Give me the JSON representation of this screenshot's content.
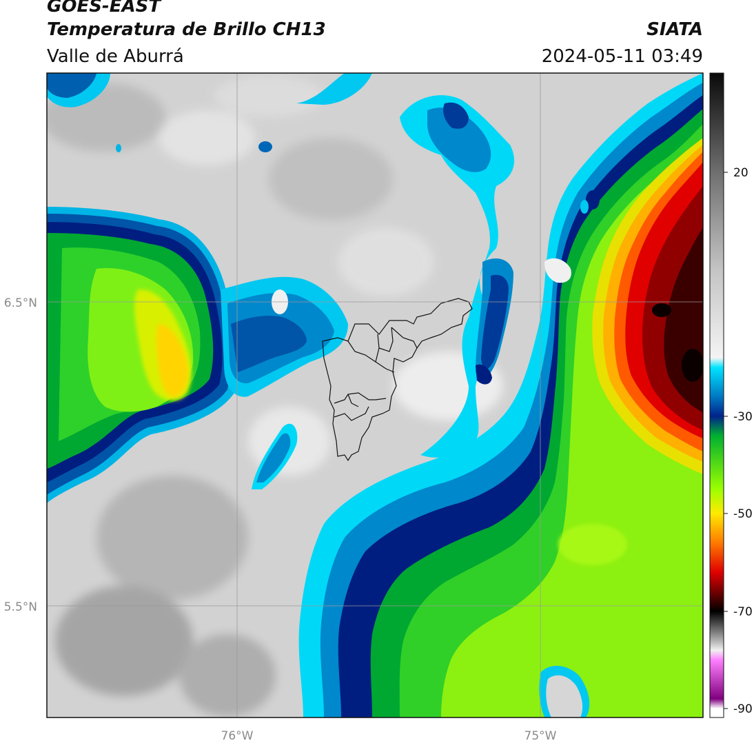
{
  "header": {
    "satellite": "GOES-EAST",
    "product": "Temperatura de Brillo CH13",
    "organization": "SIATA",
    "region": "Valle de Aburrá",
    "timestamp": "2024-05-11 03:49"
  },
  "map": {
    "lat_labels": [
      "6.5°N",
      "5.5°N"
    ],
    "lon_labels": [
      "76°W",
      "75°W"
    ],
    "grid_color": "#9a9a9a"
  },
  "colorbar": {
    "ticks": [
      "20",
      "-30",
      "-50",
      "-70",
      "-90"
    ],
    "stops": [
      {
        "value": 30,
        "color": "#0a0a0a"
      },
      {
        "value": 20,
        "color": "#6f6f6f"
      },
      {
        "value": 0,
        "color": "#c4c4c4"
      },
      {
        "value": -18,
        "color": "#f4f4f4"
      },
      {
        "value": -20,
        "color": "#00e4ff"
      },
      {
        "value": -26,
        "color": "#0077c2"
      },
      {
        "value": -30,
        "color": "#00238c"
      },
      {
        "value": -34,
        "color": "#00b030"
      },
      {
        "value": -45,
        "color": "#9cff00"
      },
      {
        "value": -50,
        "color": "#ffea00"
      },
      {
        "value": -56,
        "color": "#ff7a00"
      },
      {
        "value": -62,
        "color": "#e00000"
      },
      {
        "value": -68,
        "color": "#3a0000"
      },
      {
        "value": -70,
        "color": "#000000"
      },
      {
        "value": -76,
        "color": "#b0b0b0"
      },
      {
        "value": -78,
        "color": "#f0f0f0"
      },
      {
        "value": -80,
        "color": "#ff80ff"
      },
      {
        "value": -88,
        "color": "#800080"
      },
      {
        "value": -90,
        "color": "#ffffff"
      }
    ]
  }
}
